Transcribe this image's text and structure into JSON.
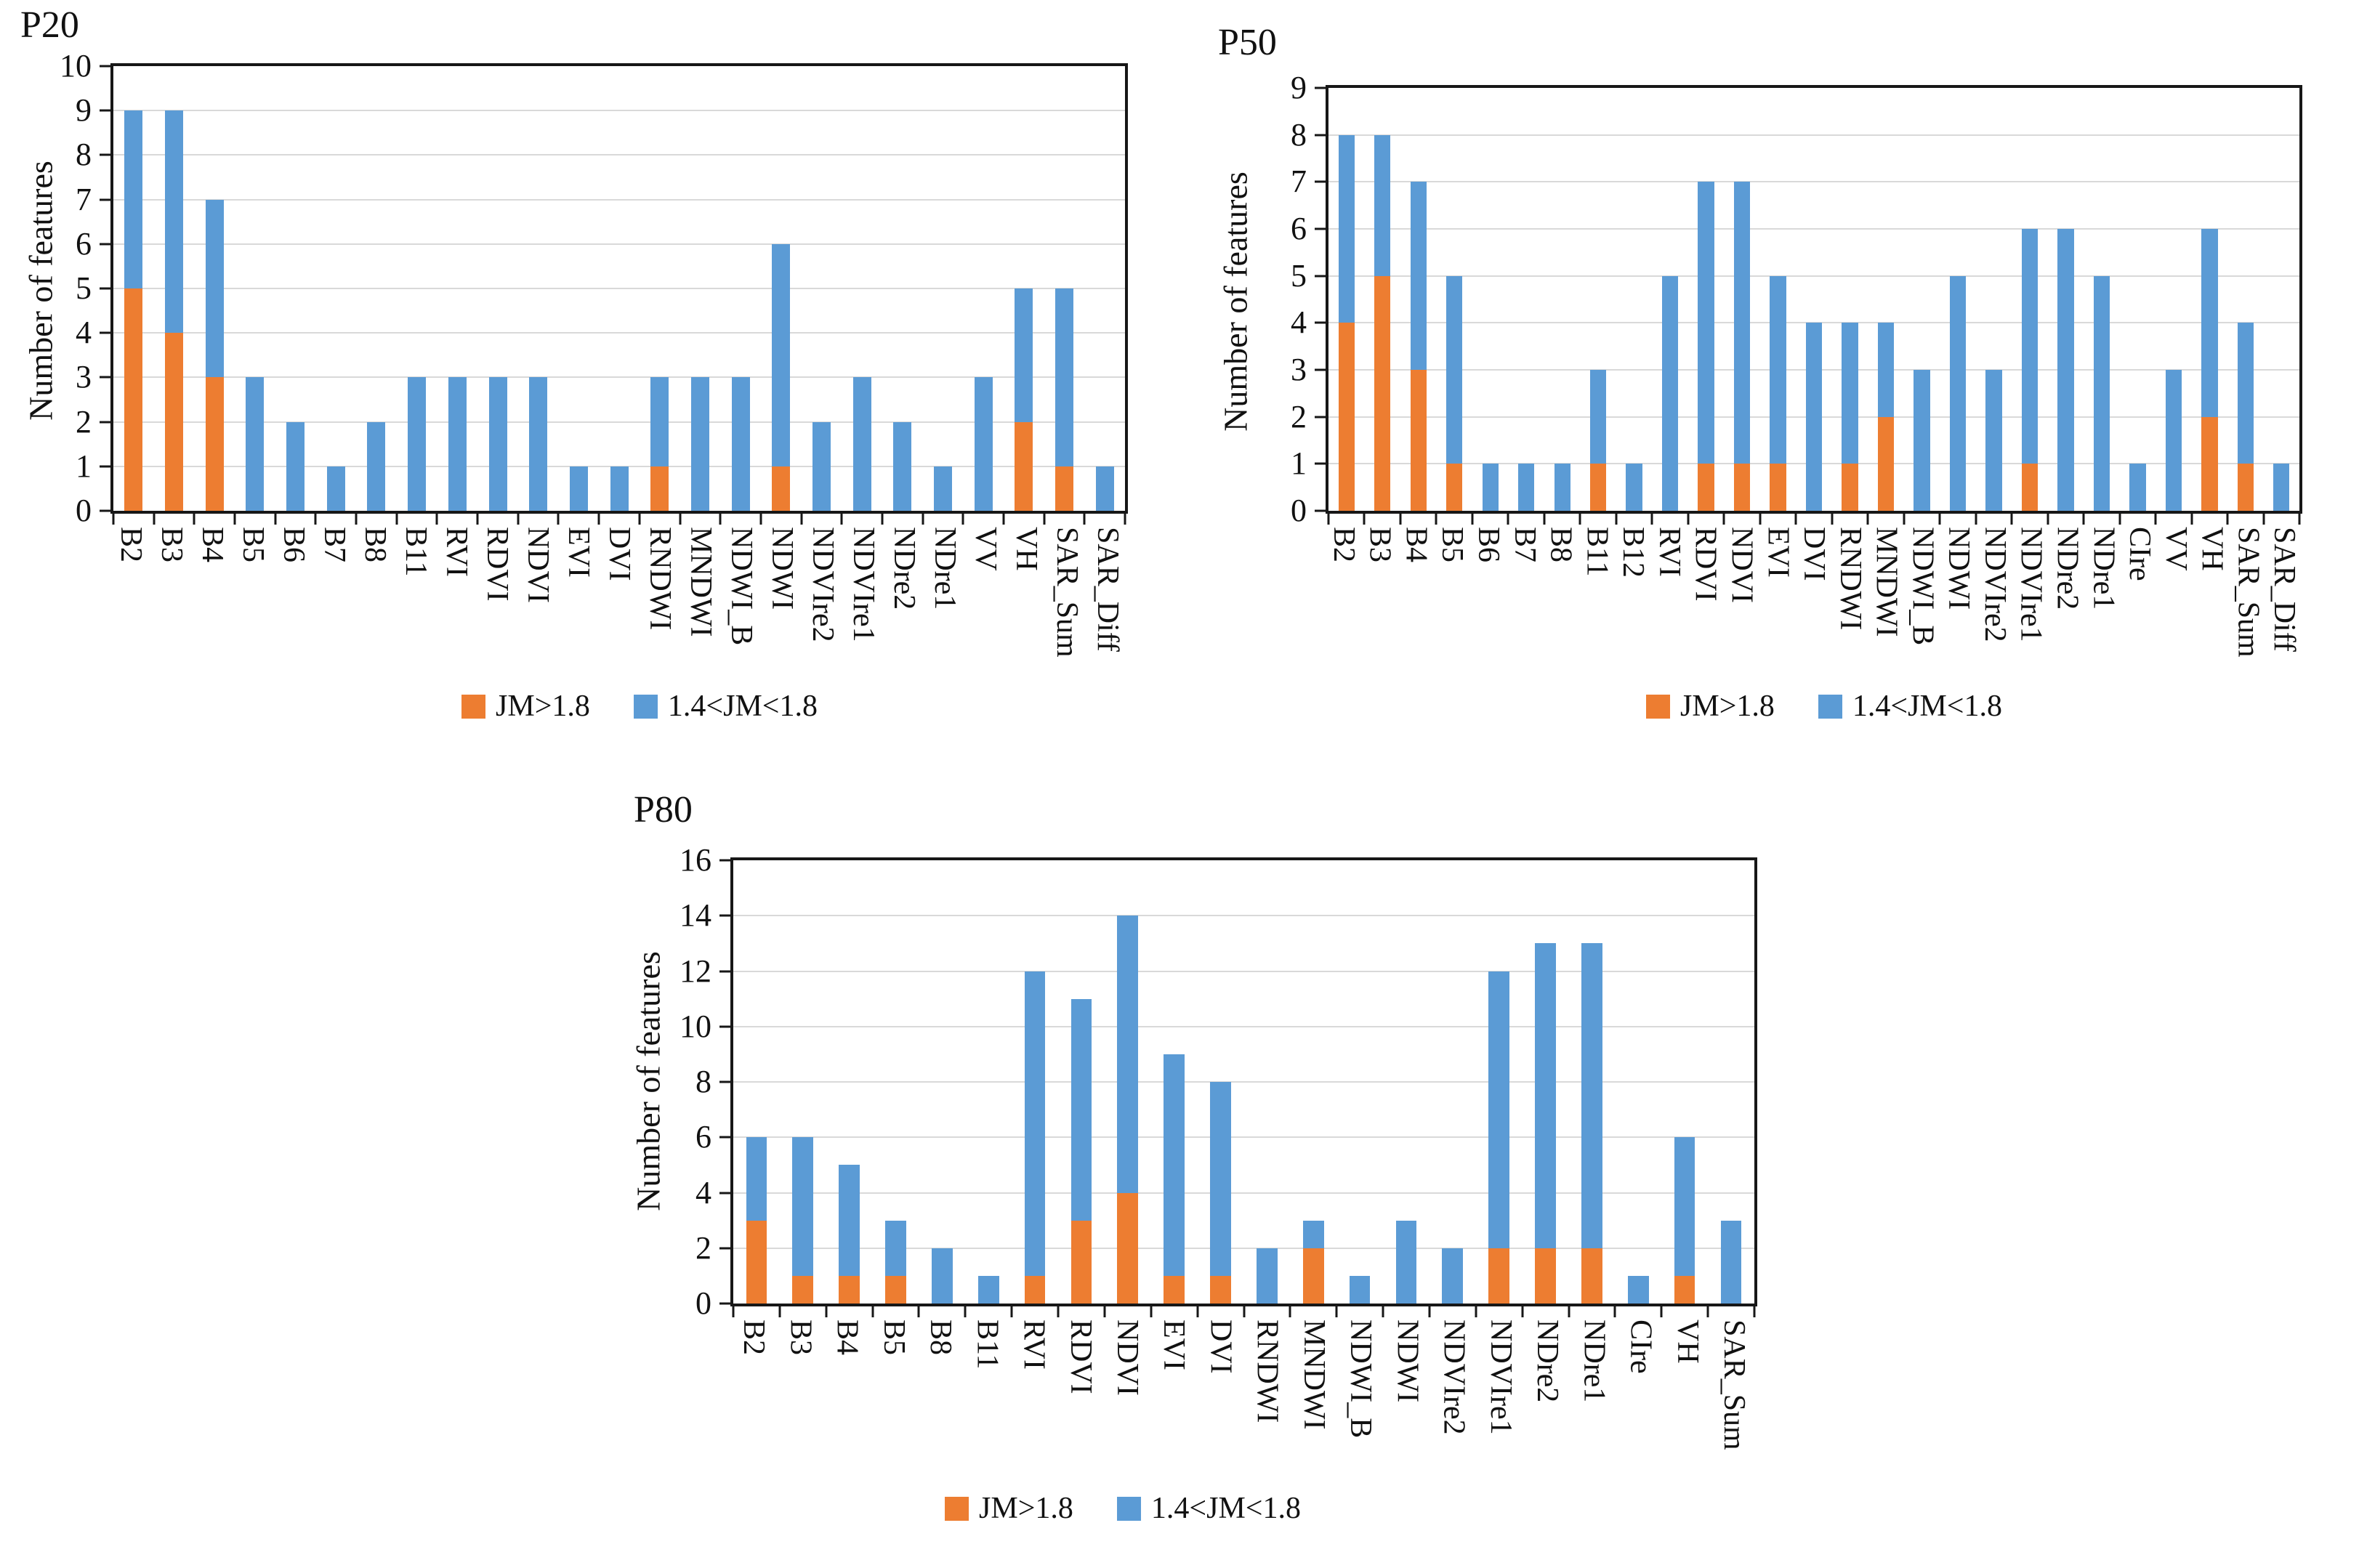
{
  "legend": {
    "series1_label": "JM>1.8",
    "series2_label": "1.4<JM<1.8"
  },
  "colors": {
    "jm_high": "#ED7D31",
    "jm_mid": "#5B9BD5",
    "gridline": "#D9D9D9",
    "axis": "#171717"
  },
  "chart_data": [
    {
      "id": "p20",
      "type": "bar",
      "stacked": true,
      "title": "P20",
      "ylabel": "Number of features",
      "xlabel": "",
      "ylim": [
        0,
        10
      ],
      "ystep": 1,
      "grid": true,
      "legend_position": "bottom",
      "categories": [
        "B2",
        "B3",
        "B4",
        "B5",
        "B6",
        "B7",
        "B8",
        "B11",
        "RVI",
        "RDVI",
        "NDVI",
        "EVI",
        "DVI",
        "RNDWI",
        "MNDWI",
        "NDWI_B",
        "NDWI",
        "NDVIre2",
        "NDVIre1",
        "NDre2",
        "NDre1",
        "VV",
        "VH",
        "SAR_Sum",
        "SAR_Diff"
      ],
      "series": [
        {
          "name": "JM>1.8",
          "color": "#ED7D31",
          "values": [
            5,
            4,
            3,
            0,
            0,
            0,
            0,
            0,
            0,
            0,
            0,
            0,
            0,
            1,
            0,
            0,
            1,
            0,
            0,
            0,
            0,
            0,
            2,
            1,
            0
          ]
        },
        {
          "name": "1.4<JM<1.8",
          "color": "#5B9BD5",
          "values": [
            4,
            5,
            4,
            3,
            2,
            1,
            2,
            3,
            3,
            3,
            3,
            1,
            1,
            2,
            3,
            3,
            5,
            2,
            3,
            2,
            1,
            3,
            3,
            4,
            1
          ]
        }
      ],
      "totals": [
        9,
        9,
        7,
        3,
        2,
        1,
        2,
        3,
        3,
        3,
        3,
        1,
        1,
        3,
        3,
        3,
        6,
        2,
        3,
        2,
        1,
        3,
        5,
        5,
        1
      ]
    },
    {
      "id": "p50",
      "type": "bar",
      "stacked": true,
      "title": "P50",
      "ylabel": "Number of features",
      "xlabel": "",
      "ylim": [
        0,
        9
      ],
      "ystep": 1,
      "grid": true,
      "legend_position": "bottom",
      "categories": [
        "B2",
        "B3",
        "B4",
        "B5",
        "B6",
        "B7",
        "B8",
        "B11",
        "B12",
        "RVI",
        "RDVI",
        "NDVI",
        "EVI",
        "DVI",
        "RNDWI",
        "MNDWI",
        "NDWI_B",
        "NDWI",
        "NDVIre2",
        "NDVIre1",
        "NDre2",
        "NDre1",
        "CIre",
        "VV",
        "VH",
        "SAR_Sum",
        "SAR_Diff"
      ],
      "series": [
        {
          "name": "JM>1.8",
          "color": "#ED7D31",
          "values": [
            4,
            5,
            3,
            1,
            0,
            0,
            0,
            1,
            0,
            0,
            1,
            1,
            1,
            0,
            1,
            2,
            0,
            0,
            0,
            1,
            0,
            0,
            0,
            0,
            2,
            1,
            0
          ]
        },
        {
          "name": "1.4<JM<1.8",
          "color": "#5B9BD5",
          "values": [
            4,
            3,
            4,
            4,
            1,
            1,
            1,
            2,
            1,
            5,
            6,
            6,
            4,
            4,
            3,
            2,
            3,
            5,
            3,
            5,
            6,
            5,
            1,
            3,
            4,
            3,
            1
          ]
        }
      ],
      "totals": [
        8,
        8,
        7,
        5,
        1,
        1,
        1,
        3,
        1,
        5,
        7,
        7,
        5,
        4,
        4,
        4,
        3,
        5,
        3,
        6,
        6,
        5,
        1,
        3,
        6,
        4,
        1
      ]
    },
    {
      "id": "p80",
      "type": "bar",
      "stacked": true,
      "title": "P80",
      "ylabel": "Number of features",
      "xlabel": "",
      "ylim": [
        0,
        16
      ],
      "ystep": 2,
      "grid": true,
      "legend_position": "bottom",
      "categories": [
        "B2",
        "B3",
        "B4",
        "B5",
        "B8",
        "B11",
        "RVI",
        "RDVI",
        "NDVI",
        "EVI",
        "DVI",
        "RNDWI",
        "MNDWI",
        "NDWI_B",
        "NDWI",
        "NDVIre2",
        "NDVIre1",
        "NDre2",
        "NDre1",
        "CIre",
        "VH",
        "SAR_Sum"
      ],
      "series": [
        {
          "name": "JM>1.8",
          "color": "#ED7D31",
          "values": [
            3,
            1,
            1,
            1,
            0,
            0,
            1,
            3,
            4,
            1,
            1,
            0,
            2,
            0,
            0,
            0,
            2,
            2,
            2,
            0,
            1,
            0
          ]
        },
        {
          "name": "1.4<JM<1.8",
          "color": "#5B9BD5",
          "values": [
            3,
            5,
            4,
            2,
            2,
            1,
            11,
            8,
            10,
            8,
            7,
            2,
            1,
            1,
            3,
            2,
            10,
            11,
            11,
            1,
            5,
            3
          ]
        }
      ],
      "totals": [
        6,
        6,
        5,
        3,
        2,
        1,
        12,
        11,
        14,
        9,
        8,
        2,
        3,
        1,
        3,
        2,
        12,
        13,
        13,
        1,
        6,
        3
      ]
    }
  ]
}
